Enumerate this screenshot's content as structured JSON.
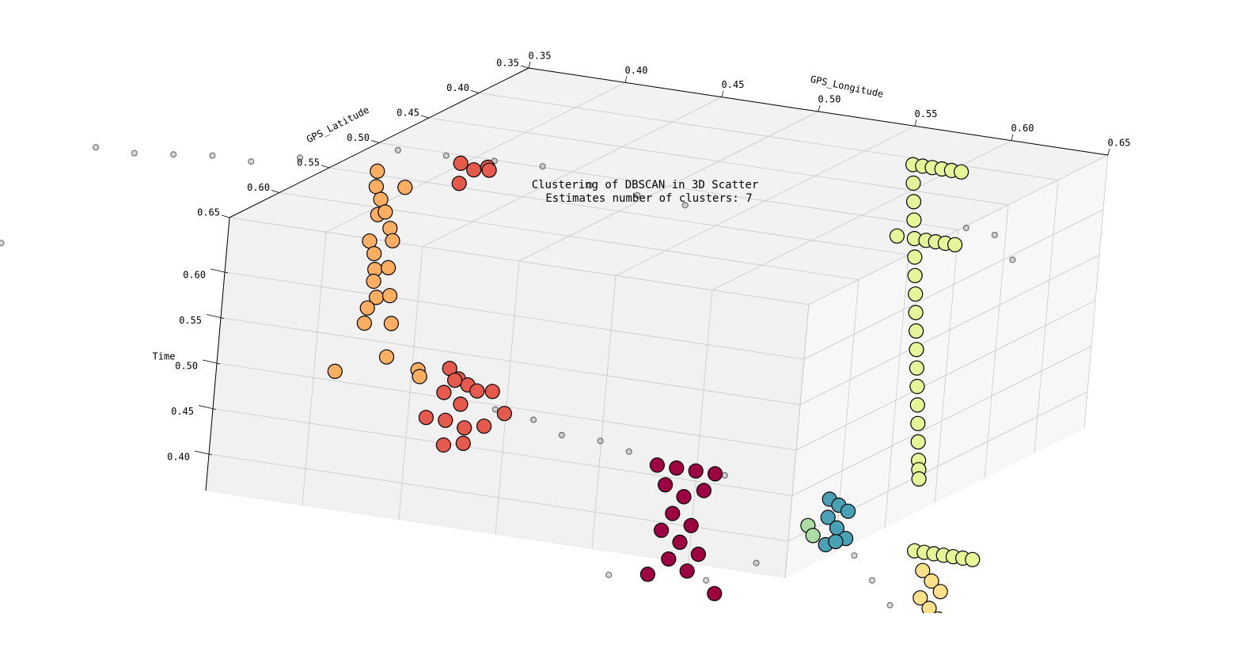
{
  "chart_data": {
    "type": "scatter3d",
    "title": "Clustering of DBSCAN in 3D Scatter",
    "subtitle": "Estimates number of clusters: 7",
    "xlabel": "GPS_Longitude",
    "ylabel": "GPS_Latitude",
    "zlabel": "Time",
    "xlim": [
      0.35,
      0.65
    ],
    "ylim": [
      0.35,
      0.65
    ],
    "zlim": [
      0.36,
      0.66
    ],
    "xticks": [
      0.35,
      {
        "value": 0.4,
        "label": "0.40"
      },
      0.45,
      {
        "value": 0.5,
        "label": "0.50"
      },
      0.55,
      {
        "value": 0.6,
        "label": "0.60"
      },
      0.65
    ],
    "yticks": [
      0.35,
      {
        "value": 0.4,
        "label": "0.40"
      },
      0.45,
      {
        "value": 0.5,
        "label": "0.50"
      },
      0.55,
      {
        "value": 0.6,
        "label": "0.60"
      },
      0.65
    ],
    "zticks": [
      {
        "value": 0.4,
        "label": "0.40"
      },
      0.45,
      {
        "value": 0.5,
        "label": "0.50"
      },
      0.55,
      {
        "value": 0.6,
        "label": "0.60"
      }
    ],
    "grid": true,
    "series": [
      {
        "color": "#000000",
        "alpha": 0.2,
        "size": 3.5,
        "x": [
          0.22,
          0.24,
          0.26,
          0.28,
          0.3,
          0.32,
          0.2,
          0.21,
          0.2,
          0.36,
          0.38,
          0.4,
          0.42,
          0.44,
          0.46,
          0.48,
          0.47,
          0.49,
          0.51,
          0.53,
          0.55,
          0.6,
          0.55,
          0.6,
          0.62,
          0.66,
          0.68,
          0.7,
          0.61,
          0.62,
          0.64
        ],
        "y": [
          0.53,
          0.53,
          0.53,
          0.53,
          0.53,
          0.52,
          0.6,
          0.6,
          0.62,
          0.5,
          0.49,
          0.48,
          0.47,
          0.46,
          0.45,
          0.44,
          0.6,
          0.6,
          0.61,
          0.61,
          0.62,
          0.62,
          0.63,
          0.63,
          0.62,
          0.6,
          0.62,
          0.64,
          0.41,
          0.4,
          0.42
        ],
        "z": [
          0.63,
          0.63,
          0.635,
          0.64,
          0.64,
          0.645,
          0.58,
          0.56,
          0.52,
          0.655,
          0.65,
          0.645,
          0.64,
          0.62,
          0.61,
          0.6,
          0.46,
          0.455,
          0.45,
          0.45,
          0.45,
          0.44,
          0.32,
          0.33,
          0.35,
          0.36,
          0.35,
          0.34,
          0.6,
          0.59,
          0.58
        ]
      },
      {
        "color": "#fdae61",
        "alpha": 1,
        "size": 9,
        "x": [
          0.365,
          0.37,
          0.375,
          0.368,
          0.372,
          0.366,
          0.374,
          0.369,
          0.371,
          0.367,
          0.373,
          0.37,
          0.368,
          0.375,
          0.372,
          0.366,
          0.37,
          0.374,
          0.362,
          0.378,
          0.38,
          0.386
        ],
        "y": [
          0.53,
          0.54,
          0.52,
          0.53,
          0.54,
          0.52,
          0.53,
          0.54,
          0.52,
          0.53,
          0.54,
          0.52,
          0.53,
          0.54,
          0.52,
          0.53,
          0.54,
          0.52,
          0.55,
          0.53,
          0.5,
          0.51
        ],
        "z": [
          0.65,
          0.64,
          0.63,
          0.62,
          0.61,
          0.6,
          0.59,
          0.58,
          0.57,
          0.56,
          0.55,
          0.54,
          0.53,
          0.52,
          0.51,
          0.5,
          0.49,
          0.48,
          0.44,
          0.45,
          0.42,
          0.42
        ]
      },
      {
        "color": "#e55a4d",
        "alpha": 1,
        "size": 9,
        "x": [
          0.378,
          0.385,
          0.392,
          0.383,
          0.388,
          0.44,
          0.445,
          0.45,
          0.455,
          0.448,
          0.452,
          0.458,
          0.443,
          0.435,
          0.445,
          0.455,
          0.465,
          0.47,
          0.46,
          0.45
        ],
        "y": [
          0.47,
          0.47,
          0.47,
          0.48,
          0.46,
          0.59,
          0.59,
          0.59,
          0.59,
          0.6,
          0.6,
          0.58,
          0.6,
          0.6,
          0.6,
          0.6,
          0.6,
          0.59,
          0.61,
          0.61
        ],
        "z": [
          0.63,
          0.625,
          0.63,
          0.615,
          0.62,
          0.49,
          0.48,
          0.475,
          0.47,
          0.485,
          0.46,
          0.465,
          0.47,
          0.44,
          0.44,
          0.435,
          0.44,
          0.45,
          0.425,
          0.42
        ]
      },
      {
        "color": "#9e0142",
        "alpha": 1,
        "size": 9,
        "x": [
          0.565,
          0.575,
          0.585,
          0.595,
          0.57,
          0.58,
          0.59,
          0.575,
          0.585,
          0.57,
          0.58,
          0.59,
          0.575,
          0.585,
          0.565,
          0.6
        ],
        "y": [
          0.62,
          0.62,
          0.62,
          0.62,
          0.62,
          0.62,
          0.62,
          0.62,
          0.62,
          0.62,
          0.62,
          0.62,
          0.62,
          0.62,
          0.62,
          0.62
        ],
        "z": [
          0.44,
          0.44,
          0.44,
          0.44,
          0.42,
          0.41,
          0.42,
          0.39,
          0.38,
          0.37,
          0.36,
          0.35,
          0.34,
          0.33,
          0.32,
          0.31
        ]
      },
      {
        "color": "#abdda4",
        "alpha": 1,
        "size": 9,
        "x": [
          0.635,
          0.638
        ],
        "y": [
          0.6,
          0.6
        ],
        "z": [
          0.385,
          0.375
        ]
      },
      {
        "color": "#4aa0b5",
        "alpha": 1,
        "size": 9,
        "x": [
          0.64,
          0.645,
          0.65,
          0.64,
          0.645,
          0.65,
          0.64,
          0.645
        ],
        "y": [
          0.59,
          0.59,
          0.59,
          0.59,
          0.59,
          0.59,
          0.59,
          0.59
        ],
        "z": [
          0.41,
          0.405,
          0.4,
          0.39,
          0.38,
          0.37,
          0.36,
          0.365
        ]
      },
      {
        "color": "#fee08b",
        "alpha": 1,
        "size": 9,
        "x": [
          0.72,
          0.725,
          0.73,
          0.72,
          0.725,
          0.73
        ],
        "y": [
          0.65,
          0.65,
          0.65,
          0.65,
          0.65,
          0.65
        ],
        "z": [
          0.39,
          0.38,
          0.37,
          0.36,
          0.35,
          0.34
        ]
      },
      {
        "color": "#e6f598",
        "alpha": 1,
        "size": 9,
        "x": [
          0.58,
          0.581,
          0.582,
          0.583,
          0.584,
          0.585,
          0.586,
          0.587,
          0.588,
          0.589,
          0.59,
          0.591,
          0.592,
          0.593,
          0.594,
          0.595,
          0.596,
          0.5965,
          0.597,
          0.585,
          0.59,
          0.595,
          0.6,
          0.605,
          0.575,
          0.59,
          0.595,
          0.6,
          0.605,
          0.715,
          0.72,
          0.725,
          0.73,
          0.735,
          0.74,
          0.745
        ],
        "y": [
          0.41,
          0.41,
          0.41,
          0.41,
          0.41,
          0.41,
          0.41,
          0.41,
          0.41,
          0.41,
          0.41,
          0.41,
          0.41,
          0.41,
          0.41,
          0.41,
          0.41,
          0.41,
          0.41,
          0.41,
          0.41,
          0.41,
          0.41,
          0.41,
          0.41,
          0.41,
          0.41,
          0.41,
          0.41,
          0.65,
          0.65,
          0.65,
          0.65,
          0.65,
          0.65,
          0.65
        ],
        "z": [
          0.66,
          0.64,
          0.62,
          0.6,
          0.58,
          0.56,
          0.54,
          0.52,
          0.5,
          0.48,
          0.46,
          0.44,
          0.42,
          0.4,
          0.38,
          0.36,
          0.34,
          0.33,
          0.32,
          0.66,
          0.66,
          0.66,
          0.66,
          0.66,
          0.58,
          0.58,
          0.58,
          0.58,
          0.58,
          0.41,
          0.41,
          0.41,
          0.41,
          0.41,
          0.41,
          0.41
        ]
      }
    ]
  }
}
